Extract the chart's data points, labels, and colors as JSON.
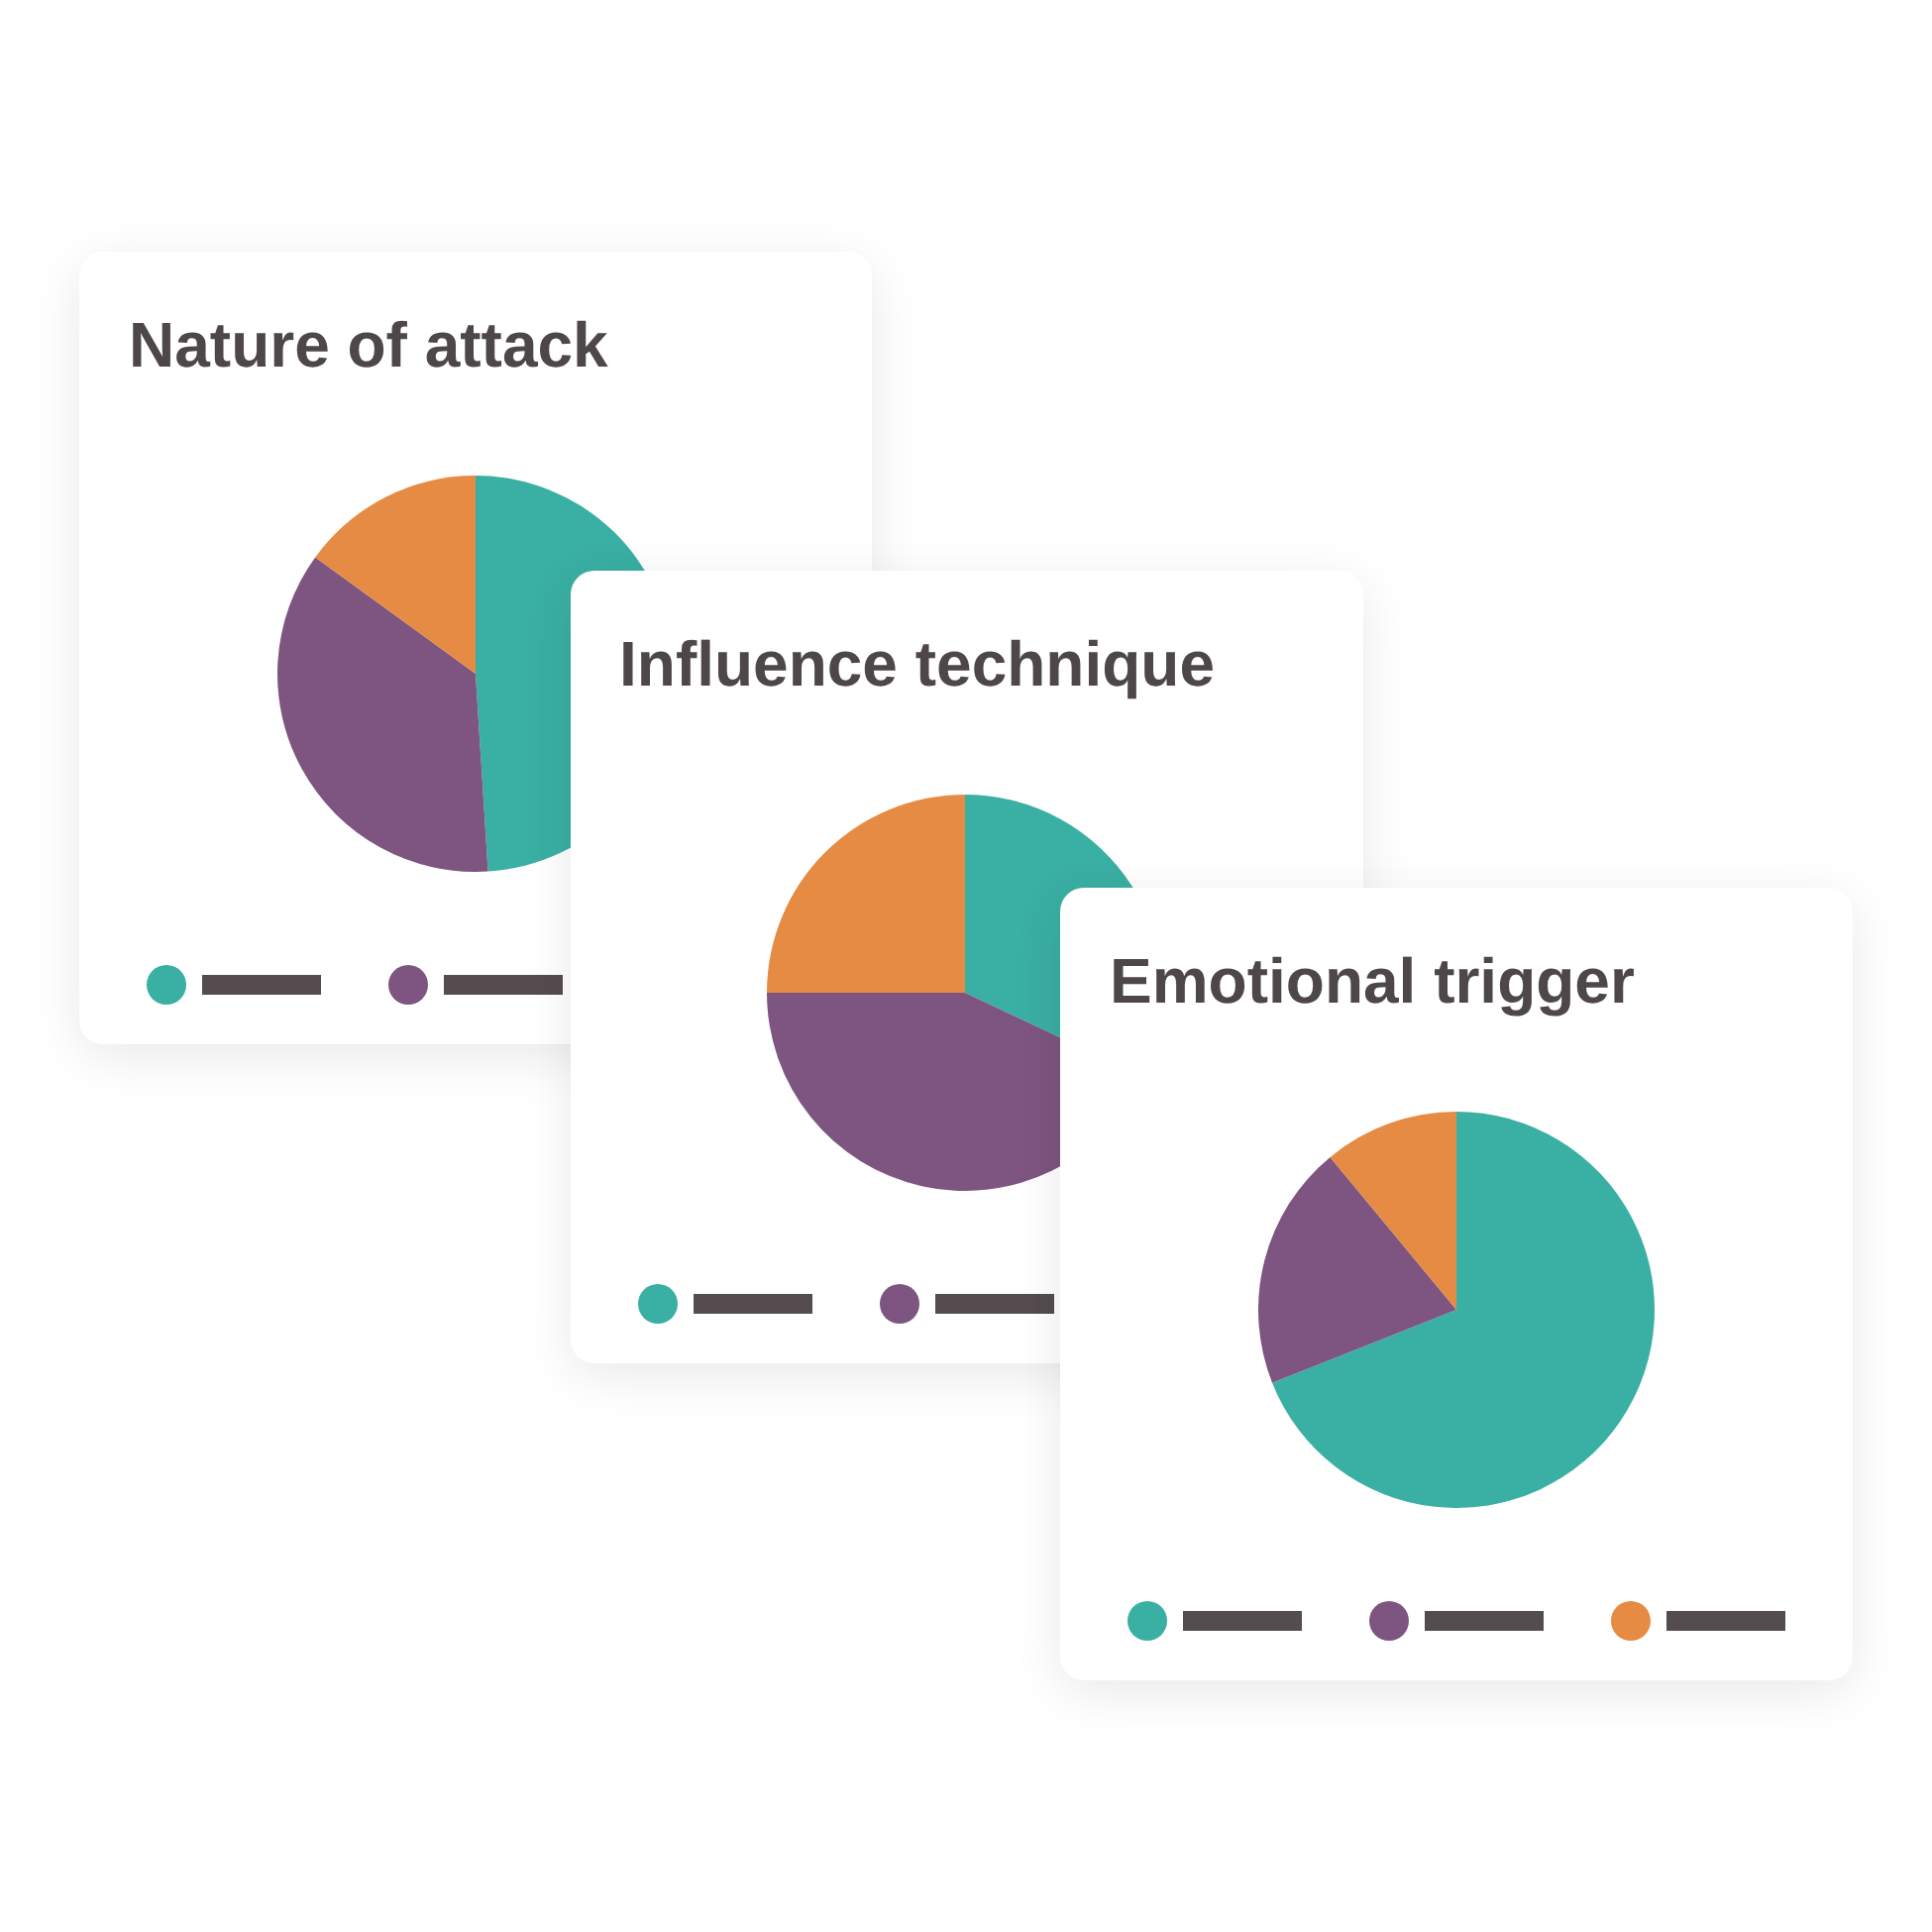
{
  "chart_data": [
    {
      "type": "pie",
      "title": "Nature of attack",
      "categories": [
        null,
        null,
        null
      ],
      "values": [
        49,
        36,
        15
      ],
      "colors": [
        "#3aafa3",
        "#7d5580",
        "#e68b43"
      ]
    },
    {
      "type": "pie",
      "title": "Influence technique",
      "categories": [
        null,
        null,
        null
      ],
      "values": [
        32,
        43,
        25
      ],
      "colors": [
        "#3aafa3",
        "#7d5580",
        "#e68b43"
      ]
    },
    {
      "type": "pie",
      "title": "Emotional trigger",
      "categories": [
        null,
        null,
        null
      ],
      "values": [
        69,
        20,
        11
      ],
      "colors": [
        "#3aafa3",
        "#7d5580",
        "#e68b43"
      ]
    }
  ]
}
